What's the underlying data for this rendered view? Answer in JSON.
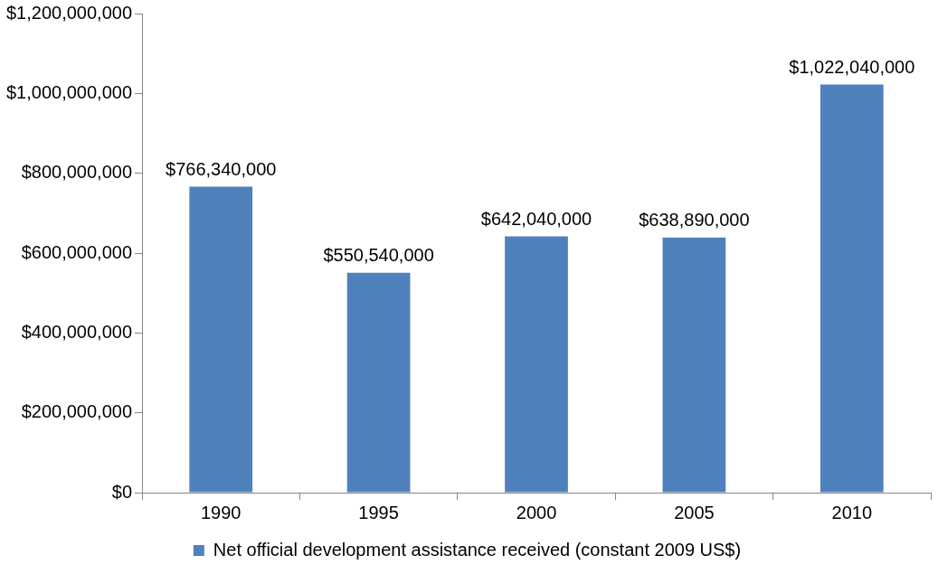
{
  "chart_data": {
    "type": "bar",
    "categories": [
      "1990",
      "1995",
      "2000",
      "2005",
      "2010"
    ],
    "series": [
      {
        "name": "Net official development assistance received (constant 2009 US$)",
        "color": "#4f81bd",
        "values": [
          766340000,
          550540000,
          642040000,
          638890000,
          1022040000
        ],
        "value_labels": [
          "$766,340,000",
          "$550,540,000",
          "$642,040,000",
          "$638,890,000",
          "$1,022,040,000"
        ]
      }
    ],
    "ylim": [
      0,
      1200000000
    ],
    "yticks": [
      {
        "value": 0,
        "label": "$0"
      },
      {
        "value": 200000000,
        "label": "$200,000,000"
      },
      {
        "value": 400000000,
        "label": "$400,000,000"
      },
      {
        "value": 600000000,
        "label": "$600,000,000"
      },
      {
        "value": 800000000,
        "label": "$800,000,000"
      },
      {
        "value": 1000000000,
        "label": "$1,000,000,000"
      },
      {
        "value": 1200000000,
        "label": "$1,200,000,000"
      }
    ],
    "grid": false,
    "legend": "bottom"
  }
}
